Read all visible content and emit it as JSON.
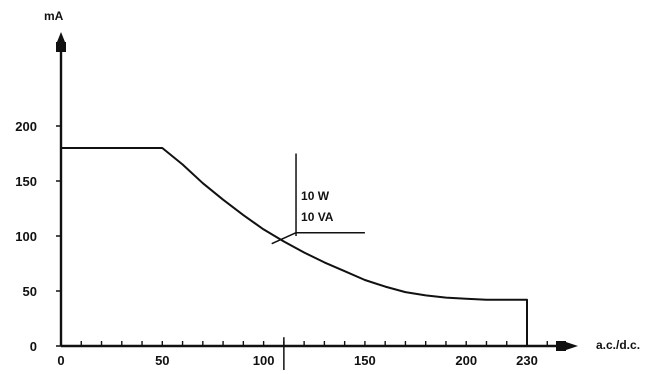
{
  "chart_data": {
    "type": "line",
    "title": "",
    "xlabel": "a.c./d.c.",
    "ylabel": "mA",
    "xlim": [
      0,
      250
    ],
    "ylim": [
      0,
      230
    ],
    "grid": false,
    "x_ticks": [
      0,
      50,
      100,
      150,
      200,
      230
    ],
    "x_tick_labels": [
      "0",
      "50",
      "100",
      "150",
      "200",
      "230"
    ],
    "y_ticks": [
      0,
      50,
      100,
      150,
      200
    ],
    "y_tick_labels": [
      "0",
      "50",
      "100",
      "150",
      "200"
    ],
    "x_minor_step": 10,
    "series": [
      {
        "x": [
          0,
          50,
          60,
          70,
          80,
          90,
          100,
          110,
          120,
          130,
          140,
          150,
          160,
          170,
          180,
          190,
          200,
          210,
          220,
          230,
          230
        ],
        "y": [
          180,
          180,
          165,
          148,
          133,
          119,
          106,
          95,
          85,
          76,
          68,
          60,
          54,
          49,
          46,
          44,
          43,
          42,
          42,
          42,
          0
        ]
      }
    ],
    "annotations": [
      {
        "text": "10 W",
        "x": 116,
        "y": 145
      },
      {
        "text": "10 VA",
        "x": 116,
        "y": 120
      }
    ],
    "annotation_pointer": {
      "x": 104,
      "y": 93
    },
    "colors": {
      "line": "#111111",
      "axis": "#111111"
    }
  }
}
